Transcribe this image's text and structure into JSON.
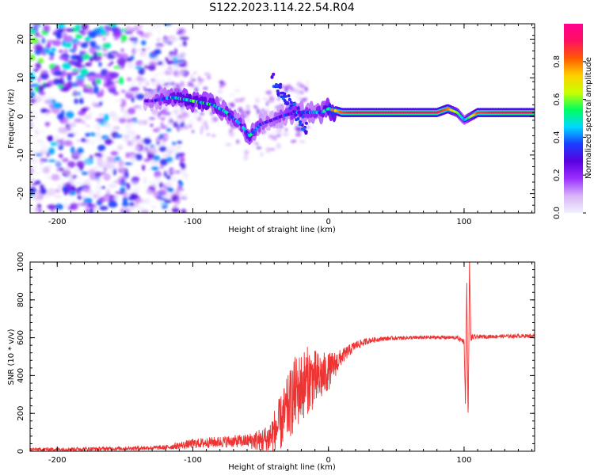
{
  "figure_title": "S122.2023.114.22.54.R04",
  "chart_data": [
    {
      "type": "heatmap",
      "title": "S122.2023.114.22.54.R04",
      "xlabel": "Height of straight line (km)",
      "ylabel": "Frequency (Hz)",
      "xlim": [
        -220,
        152
      ],
      "ylim": [
        -25,
        24
      ],
      "xticks": [
        -200,
        -100,
        0,
        100
      ],
      "yticks": [
        -20,
        -10,
        0,
        10,
        20
      ],
      "colorbar": {
        "label": "Normalized spectral amplitude",
        "range": [
          0.0,
          1.0
        ],
        "ticks": [
          "0.0",
          "0.2",
          "0.4",
          "0.6",
          "0.8"
        ],
        "colors": [
          "#f2f2ff",
          "#d8b4f8",
          "#9b30ff",
          "#5a00e0",
          "#1a3cff",
          "#00d8ff",
          "#00ff60",
          "#c8ff00",
          "#ffd000",
          "#ff5a00",
          "#ff1060",
          "#ff0090"
        ]
      },
      "ridge": {
        "description": "dominant frequency track",
        "x": [
          -130,
          -115,
          -100,
          -85,
          -75,
          -65,
          -58,
          -50,
          -42,
          -35,
          -25,
          -15,
          -5,
          0,
          10,
          20,
          40,
          60,
          80,
          88,
          95,
          100,
          110,
          130,
          150
        ],
        "y": [
          4,
          5,
          4,
          3,
          1,
          -2,
          -5,
          -2,
          -1,
          0,
          1,
          1,
          1,
          2,
          1,
          1,
          1,
          1,
          1,
          2,
          1,
          -1,
          1,
          1,
          1
        ],
        "amplitude": [
          0.25,
          0.45,
          0.5,
          0.45,
          0.4,
          0.35,
          0.45,
          0.3,
          0.25,
          0.3,
          0.35,
          0.35,
          0.4,
          0.55,
          0.85,
          0.95,
          0.95,
          0.95,
          0.92,
          0.8,
          0.6,
          0.4,
          0.85,
          0.95,
          0.95
        ]
      },
      "noise_region_x": [
        -220,
        -120
      ]
    },
    {
      "type": "line",
      "xlabel": "Height of straight line (km)",
      "ylabel": "SNR (10 * v/v)",
      "xlim": [
        -220,
        152
      ],
      "ylim": [
        0,
        1000
      ],
      "xticks": [
        -200,
        -100,
        0,
        100
      ],
      "yticks": [
        0,
        200,
        400,
        600,
        800,
        1000
      ],
      "color": "#ee3333",
      "envelope": {
        "x": [
          -220,
          -180,
          -150,
          -120,
          -100,
          -80,
          -60,
          -45,
          -35,
          -25,
          -15,
          -8,
          0,
          10,
          20,
          30,
          40,
          50,
          60,
          80,
          95,
          100,
          101,
          102,
          103,
          104,
          105,
          110,
          130,
          152
        ],
        "y": [
          10,
          12,
          15,
          20,
          40,
          50,
          55,
          60,
          150,
          300,
          380,
          380,
          420,
          500,
          560,
          585,
          595,
          598,
          600,
          602,
          600,
          580,
          250,
          900,
          130,
          1000,
          600,
          605,
          608,
          610
        ],
        "noise": [
          8,
          10,
          10,
          12,
          25,
          30,
          35,
          80,
          150,
          200,
          180,
          150,
          100,
          40,
          25,
          15,
          12,
          10,
          10,
          10,
          10,
          15,
          20,
          30,
          30,
          30,
          20,
          10,
          10,
          10
        ]
      }
    }
  ]
}
